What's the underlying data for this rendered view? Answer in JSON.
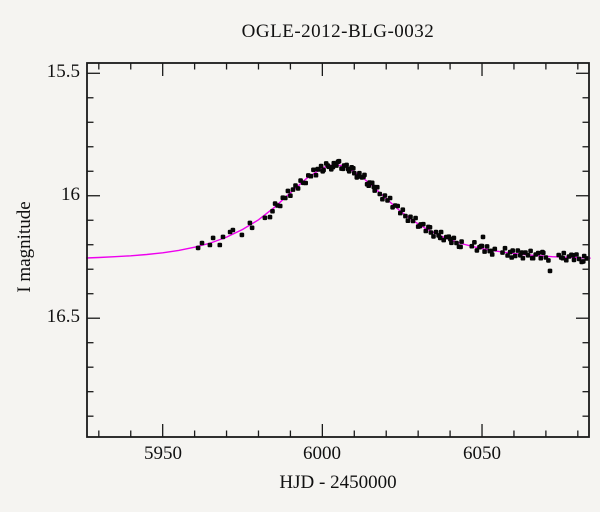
{
  "chart_data": {
    "type": "scatter",
    "title": "OGLE-2012-BLG-0032",
    "xlabel": "HJD - 2450000",
    "ylabel": "I magnitude",
    "xlim": [
      5926.3,
      6083.5
    ],
    "ylim_top": 15.458,
    "ylim_bottom": 16.985,
    "y_axis_inverted": true,
    "grid": false,
    "legend": "none",
    "x_major_ticks": [
      5950,
      6000,
      6050
    ],
    "x_tick_labels": [
      "5950",
      "6000",
      "6050"
    ],
    "x_minor_step": 10,
    "y_major_ticks": [
      15.5,
      16.0,
      16.5
    ],
    "y_tick_labels": [
      "15.5",
      "16",
      "16.5"
    ],
    "y_minor_step": 0.1,
    "colors": {
      "background": "#f5f4f1",
      "frame": "#1a1a1a",
      "tick": "#1a1a1a",
      "text": "#111111",
      "data_points": "#060606",
      "model_curve": "#ee00ee"
    },
    "model_curve": {
      "name": "microlensing-model",
      "points": [
        [
          5926,
          16.254
        ],
        [
          5930,
          16.252
        ],
        [
          5935,
          16.249
        ],
        [
          5940,
          16.245
        ],
        [
          5945,
          16.24
        ],
        [
          5950,
          16.233
        ],
        [
          5955,
          16.223
        ],
        [
          5960,
          16.21
        ],
        [
          5965,
          16.193
        ],
        [
          5970,
          16.169
        ],
        [
          5975,
          16.138
        ],
        [
          5980,
          16.098
        ],
        [
          5985,
          16.047
        ],
        [
          5990,
          15.988
        ],
        [
          5995,
          15.93
        ],
        [
          5998,
          15.904
        ],
        [
          6000,
          15.887
        ],
        [
          6002,
          15.877
        ],
        [
          6004,
          15.875
        ],
        [
          6006,
          15.877
        ],
        [
          6008,
          15.887
        ],
        [
          6010,
          15.903
        ],
        [
          6012,
          15.919
        ],
        [
          6016,
          15.964
        ],
        [
          6020,
          16.012
        ],
        [
          6024,
          16.058
        ],
        [
          6028,
          16.098
        ],
        [
          6032,
          16.131
        ],
        [
          6036,
          16.158
        ],
        [
          6040,
          16.18
        ],
        [
          6044,
          16.197
        ],
        [
          6048,
          16.21
        ],
        [
          6052,
          16.221
        ],
        [
          6056,
          16.229
        ],
        [
          6060,
          16.236
        ],
        [
          6064,
          16.241
        ],
        [
          6068,
          16.245
        ],
        [
          6072,
          16.249
        ],
        [
          6076,
          16.251
        ],
        [
          6080,
          16.253
        ],
        [
          6084,
          16.255
        ]
      ]
    },
    "series": [
      {
        "name": "OGLE I-band photometry",
        "marker": "square",
        "points": [
          [
            5961.1,
            16.213
          ],
          [
            5962.3,
            16.193
          ],
          [
            5964.8,
            16.201
          ],
          [
            5965.8,
            16.172
          ],
          [
            5967.9,
            16.201
          ],
          [
            5968.9,
            16.168
          ],
          [
            5971.1,
            16.148
          ],
          [
            5972.0,
            16.14
          ],
          [
            5974.8,
            16.16
          ],
          [
            5977.3,
            16.111
          ],
          [
            5978.0,
            16.131
          ],
          [
            5982.0,
            16.09
          ],
          [
            5983.6,
            16.087
          ],
          [
            5984.4,
            16.063
          ],
          [
            5985.2,
            16.032
          ],
          [
            5986.0,
            16.04
          ],
          [
            5986.8,
            16.042
          ],
          [
            5987.6,
            16.008
          ],
          [
            5988.4,
            16.009
          ],
          [
            5989.2,
            15.98
          ],
          [
            5990.0,
            16.0
          ],
          [
            5990.8,
            15.975
          ],
          [
            5991.6,
            15.958
          ],
          [
            5992.4,
            15.97
          ],
          [
            5993.2,
            15.938
          ],
          [
            5994.0,
            15.947
          ],
          [
            5994.8,
            15.948
          ],
          [
            5995.6,
            15.917
          ],
          [
            5996.4,
            15.92
          ],
          [
            5997.2,
            15.894
          ],
          [
            5998.0,
            15.916
          ],
          [
            5998.8,
            15.893
          ],
          [
            5999.6,
            15.879
          ],
          [
            6000.4,
            15.895
          ],
          [
            6001.2,
            15.868
          ],
          [
            6002.0,
            15.882
          ],
          [
            6002.8,
            15.892
          ],
          [
            6003.6,
            15.867
          ],
          [
            6004.4,
            15.877
          ],
          [
            6005.2,
            15.859
          ],
          [
            6006.0,
            15.889
          ],
          [
            6006.8,
            15.877
          ],
          [
            6007.6,
            15.874
          ],
          [
            6008.4,
            15.9
          ],
          [
            6009.2,
            15.884
          ],
          [
            6010.0,
            15.908
          ],
          [
            6010.8,
            15.925
          ],
          [
            6011.6,
            15.908
          ],
          [
            6012.4,
            15.925
          ],
          [
            6013.2,
            15.915
          ],
          [
            6014.0,
            15.953
          ],
          [
            6014.8,
            15.946
          ],
          [
            6015.6,
            15.947
          ],
          [
            6016.4,
            15.979
          ],
          [
            6017.2,
            15.965
          ],
          [
            6018.0,
            15.993
          ],
          [
            6018.8,
            16.014
          ],
          [
            6019.6,
            15.999
          ],
          [
            6020.4,
            16.019
          ],
          [
            6021.2,
            16.009
          ],
          [
            6022.0,
            16.047
          ],
          [
            6022.8,
            16.04
          ],
          [
            6023.6,
            16.042
          ],
          [
            6024.4,
            16.071
          ],
          [
            6025.2,
            16.057
          ],
          [
            6026.0,
            16.083
          ],
          [
            6026.8,
            16.102
          ],
          [
            6027.6,
            16.086
          ],
          [
            6028.4,
            16.103
          ],
          [
            6029.2,
            16.091
          ],
          [
            6030.0,
            16.126
          ],
          [
            6030.8,
            16.117
          ],
          [
            6031.6,
            16.116
          ],
          [
            6032.4,
            16.144
          ],
          [
            6033.2,
            16.127
          ],
          [
            6034.0,
            16.15
          ],
          [
            6034.8,
            16.166
          ],
          [
            6035.6,
            16.148
          ],
          [
            6036.4,
            16.162
          ],
          [
            6037.2,
            16.148
          ],
          [
            6038.0,
            16.181
          ],
          [
            6038.8,
            16.169
          ],
          [
            6039.6,
            16.167
          ],
          [
            6040.4,
            16.192
          ],
          [
            6041.2,
            16.172
          ],
          [
            6042.0,
            16.193
          ],
          [
            6042.8,
            16.208
          ],
          [
            6043.6,
            16.187
          ],
          [
            6046.8,
            16.206
          ],
          [
            6047.6,
            16.19
          ],
          [
            6048.4,
            16.223
          ],
          [
            6049.2,
            16.21
          ],
          [
            6050.0,
            16.205
          ],
          [
            6050.8,
            16.228
          ],
          [
            6051.6,
            16.207
          ],
          [
            6052.4,
            16.226
          ],
          [
            6053.2,
            16.24
          ],
          [
            6054.0,
            16.217
          ],
          [
            6056.4,
            16.232
          ],
          [
            6057.2,
            16.214
          ],
          [
            6058.0,
            16.244
          ],
          [
            6058.8,
            16.23
          ],
          [
            6059.6,
            16.224
          ],
          [
            6060.4,
            16.246
          ],
          [
            6061.2,
            16.224
          ],
          [
            6062.0,
            16.243
          ],
          [
            6062.8,
            16.255
          ],
          [
            6063.6,
            16.232
          ],
          [
            6064.4,
            16.243
          ],
          [
            6065.2,
            16.225
          ],
          [
            6066.0,
            16.255
          ],
          [
            6066.8,
            16.24
          ],
          [
            6067.6,
            16.234
          ],
          [
            6068.4,
            16.255
          ],
          [
            6069.2,
            16.233
          ],
          [
            6070.0,
            16.252
          ],
          [
            6070.8,
            16.264
          ],
          [
            6074.0,
            16.242
          ],
          [
            6074.8,
            16.252
          ],
          [
            6075.6,
            16.234
          ],
          [
            6076.4,
            16.263
          ],
          [
            6077.2,
            16.248
          ],
          [
            6078.0,
            16.241
          ],
          [
            6078.8,
            16.262
          ],
          [
            6079.6,
            16.24
          ],
          [
            6080.4,
            16.258
          ],
          [
            6081.2,
            16.27
          ],
          [
            6082.0,
            16.246
          ],
          [
            6082.8,
            16.256
          ],
          [
            5998.5,
            15.891
          ],
          [
            6000.1,
            15.9
          ],
          [
            6001.7,
            15.877
          ],
          [
            6003.3,
            15.883
          ],
          [
            6004.9,
            15.861
          ],
          [
            6006.5,
            15.89
          ],
          [
            6008.1,
            15.891
          ],
          [
            6009.7,
            15.888
          ],
          [
            6011.3,
            15.921
          ],
          [
            6012.9,
            15.923
          ],
          [
            6014.5,
            15.959
          ],
          [
            6016.1,
            15.964
          ],
          [
            6030.5,
            16.124
          ],
          [
            6033.7,
            16.129
          ],
          [
            6036.9,
            16.172
          ],
          [
            6040.1,
            16.177
          ],
          [
            6043.3,
            16.209
          ],
          [
            6049.7,
            16.205
          ],
          [
            6052.9,
            16.225
          ],
          [
            6059.3,
            16.252
          ],
          [
            6062.5,
            16.232
          ],
          [
            6065.7,
            16.255
          ],
          [
            6068.9,
            16.23
          ],
          [
            6075.3,
            16.255
          ],
          [
            6078.5,
            16.243
          ],
          [
            6081.7,
            16.268
          ],
          [
            6050.3,
            16.168
          ],
          [
            6071.3,
            16.307
          ]
        ]
      }
    ]
  }
}
